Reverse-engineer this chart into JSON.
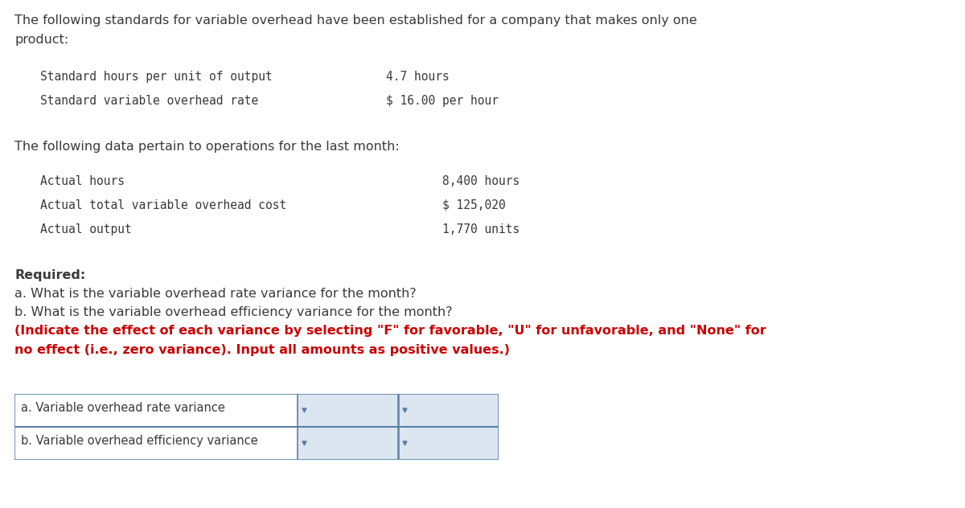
{
  "bg_color": "#ffffff",
  "intro_text_line1": "The following standards for variable overhead have been established for a company that makes only one",
  "intro_text_line2": "product:",
  "standards_label1": "Standard hours per unit of output",
  "standards_value1": "4.7 hours",
  "standards_label2": "Standard variable overhead rate",
  "standards_value2": "$ 16.00 per hour",
  "data_intro": "The following data pertain to operations for the last month:",
  "data_label1": "Actual hours",
  "data_value1": "8,400 hours",
  "data_label2": "Actual total variable overhead cost",
  "data_value2": "$ 125,020",
  "data_label3": "Actual output",
  "data_value3": "1,770 units",
  "required_bold": "Required:",
  "req_a": "a. What is the variable overhead rate variance for the month?",
  "req_b": "b. What is the variable overhead efficiency variance for the month?",
  "req_red_line1": "(Indicate the effect of each variance by selecting \"F\" for favorable, \"U\" for unfavorable, and \"None\" for",
  "req_red_line2": "no effect (i.e., zero variance). Input all amounts as positive values.)",
  "table_row1": "a. Variable overhead rate variance",
  "table_row2": "b. Variable overhead efficiency variance",
  "mono_font": "DejaVu Sans Mono",
  "sans_font": "DejaVu Sans",
  "table_border_color": "#5b7fa6",
  "shade_color": "#ebebeb",
  "input_bg": "#dce6f1",
  "text_color": "#3a3a3a",
  "red_color": "#cc0000",
  "arrow_color": "#5b7fa6"
}
